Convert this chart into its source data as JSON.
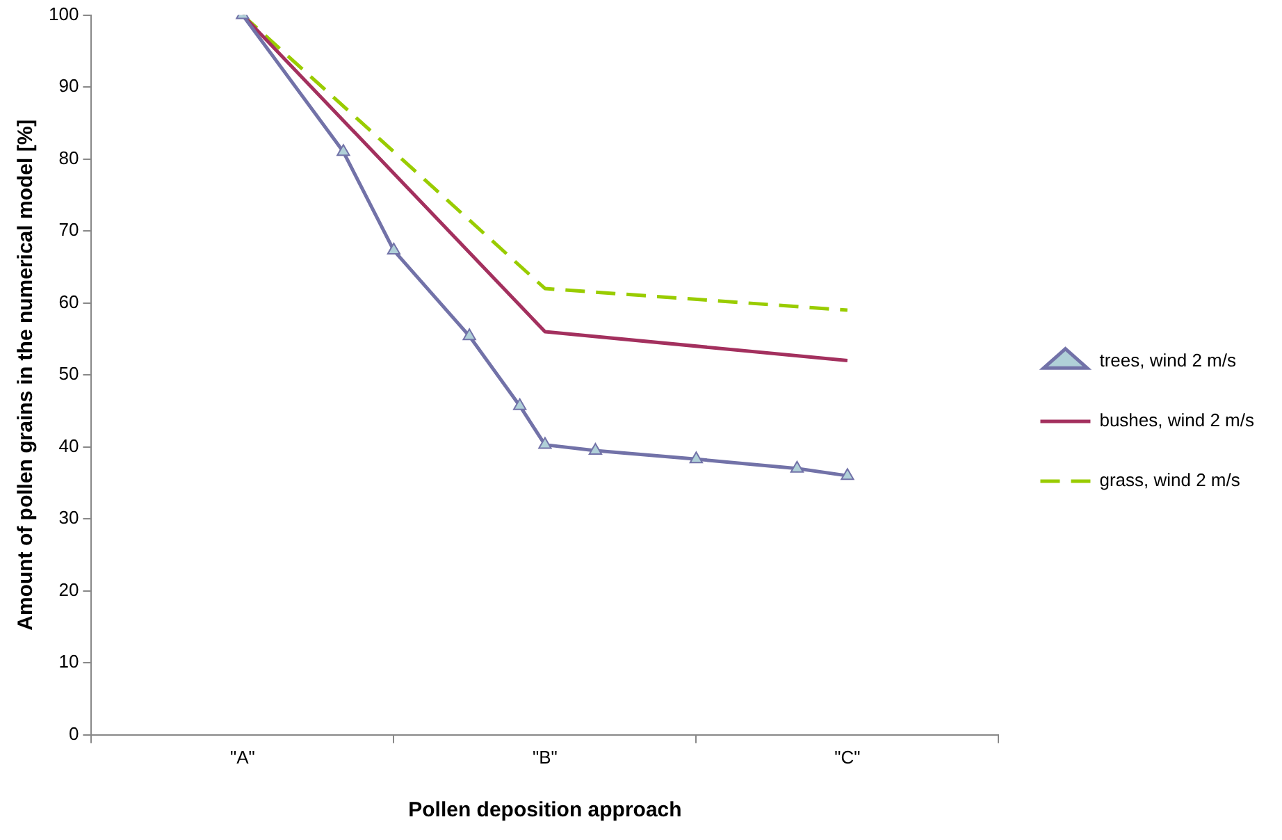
{
  "chart_data": {
    "type": "line",
    "xlabel": "Pollen deposition approach",
    "ylabel": "Amount of pollen grains in the numerical model [%]",
    "categories": [
      null,
      null,
      null,
      null,
      null,
      null,
      "\"A\"",
      null,
      null,
      null,
      null,
      null,
      null,
      null,
      null,
      null,
      null,
      null,
      "\"B\"",
      null,
      null,
      null,
      null,
      null,
      null,
      null,
      null,
      null,
      null,
      null,
      "\"C\"",
      null,
      null,
      null,
      null,
      null,
      null
    ],
    "ylim": [
      0,
      100
    ],
    "yticks": [
      0,
      10,
      20,
      30,
      40,
      50,
      60,
      70,
      80,
      90,
      100
    ],
    "grid": false,
    "legend": "right",
    "series": [
      {
        "name": "trees, wind 2 m/s",
        "color": "#7272a8",
        "marker": "triangle",
        "line_style": "solid",
        "values": [
          null,
          null,
          null,
          null,
          null,
          null,
          100,
          null,
          null,
          null,
          81,
          null,
          67.3,
          null,
          null,
          55.4,
          null,
          45.7,
          40.3,
          null,
          39.5,
          null,
          null,
          null,
          38.3,
          null,
          null,
          null,
          37,
          null,
          36,
          null,
          null,
          null,
          null,
          null,
          null
        ]
      },
      {
        "name": "bushes, wind 2 m/s",
        "color": "#a3305e",
        "marker": "none",
        "line_style": "solid",
        "values": [
          null,
          null,
          null,
          null,
          null,
          null,
          100,
          null,
          null,
          null,
          null,
          null,
          null,
          null,
          null,
          null,
          null,
          null,
          56,
          null,
          null,
          null,
          null,
          null,
          null,
          null,
          null,
          null,
          null,
          null,
          52,
          null,
          null,
          null,
          null,
          null,
          null
        ]
      },
      {
        "name": "grass, wind 2 m/s",
        "color": "#99cc00",
        "marker": "none",
        "line_style": "dashed",
        "values": [
          null,
          null,
          null,
          null,
          null,
          null,
          100,
          null,
          null,
          null,
          null,
          null,
          null,
          null,
          null,
          null,
          null,
          null,
          62,
          null,
          null,
          null,
          null,
          null,
          null,
          null,
          null,
          null,
          null,
          null,
          59,
          null,
          null,
          null,
          null,
          null,
          null
        ]
      }
    ]
  }
}
